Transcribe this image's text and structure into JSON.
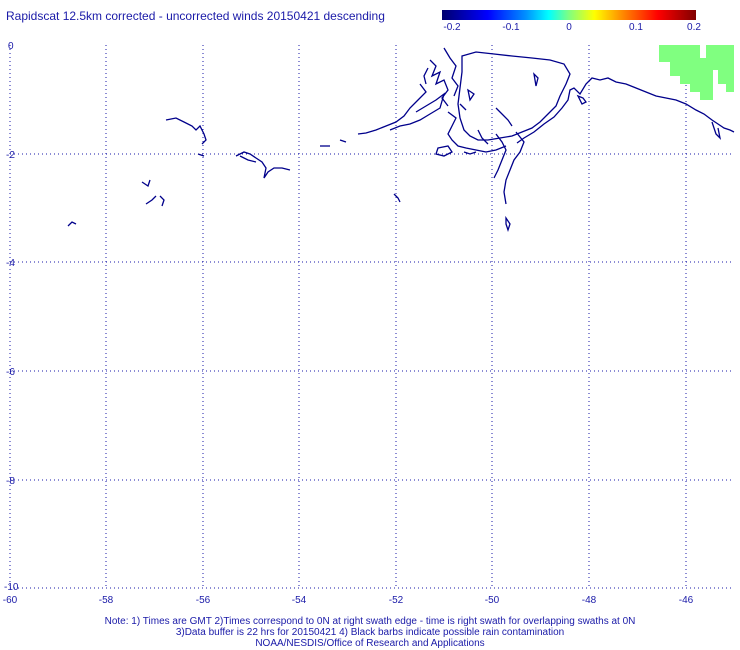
{
  "title": "Rapidscat 12.5km corrected - uncorrected winds 20150421 descending",
  "colorbar": {
    "ticks": [
      "-0.2",
      "-0.1",
      "0",
      "0.1",
      "0.2"
    ]
  },
  "axes": {
    "x_ticks": [
      "-60",
      "-58",
      "-56",
      "-54",
      "-52",
      "-50",
      "-48",
      "-46"
    ],
    "y_ticks": [
      "0",
      "-2",
      "-4",
      "-6",
      "-8",
      "-10"
    ],
    "xlim": [
      -60,
      -45
    ],
    "ylim": [
      -10,
      0
    ]
  },
  "colors": {
    "text": "#1a1aa8",
    "coastline": "#00008b",
    "grid": "#1a1aa8",
    "wind_diff": "#80ff80"
  },
  "notes": [
    "Note: 1) Times are GMT 2)Times correspond to 0N at right swath edge - time is right swath for overlapping swaths at 0N",
    "3)Data buffer is 22 hrs for 20150421 4) Black barbs indicate possible rain contamination",
    "NOAA/NESDIS/Office of Research and Applications"
  ]
}
